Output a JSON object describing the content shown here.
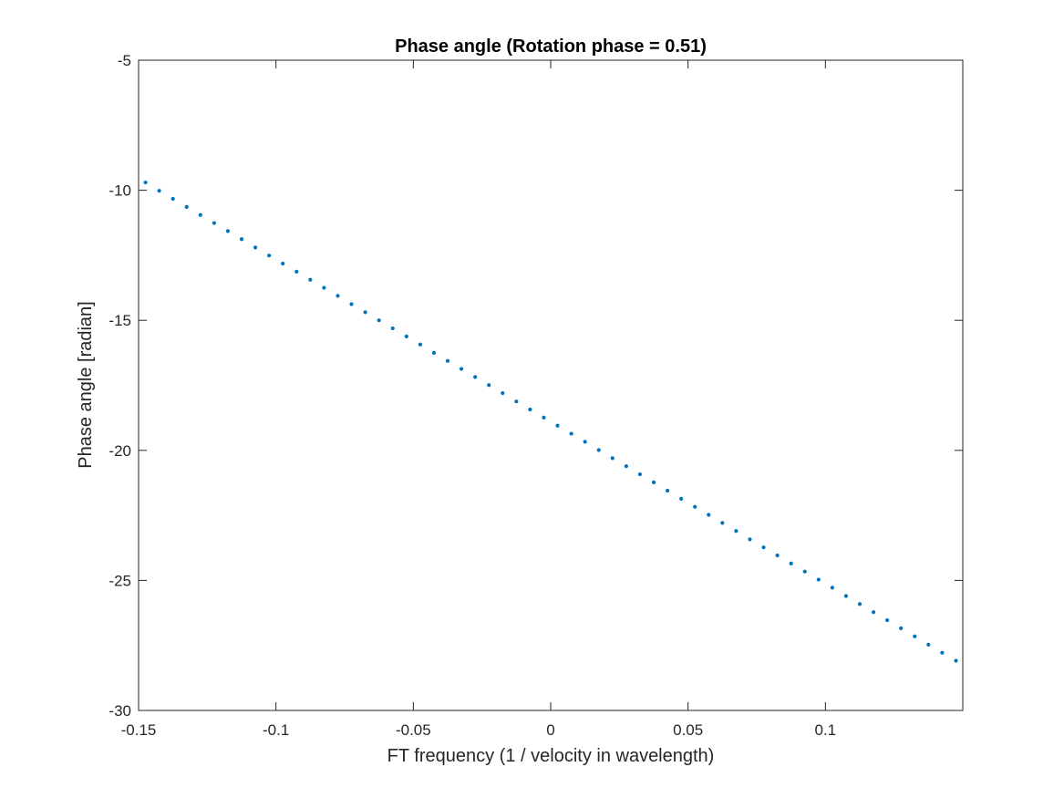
{
  "chart_data": {
    "type": "scatter",
    "title": "Phase angle (Rotation phase = 0.51)",
    "xlabel": "FT frequency (1 / velocity in wavelength)",
    "ylabel": "Phase angle [radian]",
    "xlim": [
      -0.15,
      0.15
    ],
    "ylim": [
      -30,
      -5
    ],
    "xticks": [
      -0.15,
      -0.1,
      -0.05,
      0,
      0.05,
      0.1
    ],
    "xtick_labels": [
      "-0.15",
      "-0.1",
      "-0.05",
      "0",
      "0.05",
      "0.1"
    ],
    "yticks": [
      -30,
      -25,
      -20,
      -15,
      -10,
      -5
    ],
    "ytick_labels": [
      "-30",
      "-25",
      "-20",
      "-15",
      "-10",
      "-5"
    ],
    "grid": false,
    "box": true,
    "marker_color": "#0072BD",
    "series": [
      {
        "x_start": -0.1475,
        "x_step": 0.005,
        "y": [
          -9.7,
          -10.02,
          -10.33,
          -10.64,
          -10.95,
          -11.26,
          -11.57,
          -11.88,
          -12.2,
          -12.51,
          -12.82,
          -13.13,
          -13.44,
          -13.75,
          -14.06,
          -14.38,
          -14.69,
          -15.0,
          -15.31,
          -15.62,
          -15.93,
          -16.25,
          -16.56,
          -16.87,
          -17.18,
          -17.49,
          -17.8,
          -18.12,
          -18.43,
          -18.74,
          -19.05,
          -19.36,
          -19.67,
          -19.99,
          -20.3,
          -20.61,
          -20.92,
          -21.23,
          -21.55,
          -21.86,
          -22.17,
          -22.48,
          -22.79,
          -23.1,
          -23.42,
          -23.73,
          -24.04,
          -24.35,
          -24.66,
          -24.97,
          -25.28,
          -25.6,
          -25.91,
          -26.22,
          -26.53,
          -26.84,
          -27.15,
          -27.47,
          -27.78,
          -28.09
        ]
      }
    ]
  }
}
